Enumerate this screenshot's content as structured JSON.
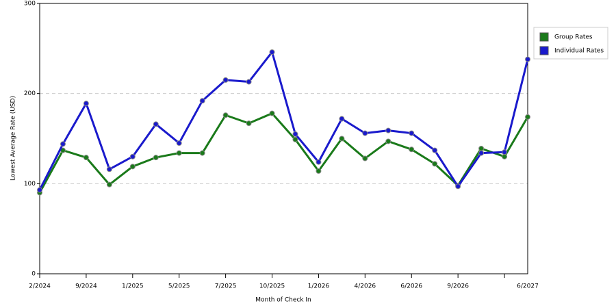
{
  "chart_data": {
    "type": "line",
    "x_label": "Month of Check In",
    "y_label": "Lowest Average Rate (USD)",
    "categories": [
      "2/2024",
      null,
      "9/2024",
      null,
      "1/2025",
      null,
      "5/2025",
      null,
      "7/2025",
      null,
      "10/2025",
      null,
      "1/2026",
      null,
      "4/2026",
      null,
      "6/2026",
      null,
      "9/2026",
      null,
      null,
      "6/2027"
    ],
    "series": [
      {
        "name": "Group Rates",
        "color": "#1a7a1a",
        "values": [
          90,
          137,
          129,
          99,
          119,
          129,
          134,
          134,
          176,
          167,
          178,
          149,
          114,
          150,
          128,
          147,
          138,
          122,
          98,
          139,
          130,
          174
        ]
      },
      {
        "name": "Individual Rates",
        "color": "#1a1acc",
        "values": [
          93,
          144,
          189,
          116,
          130,
          166,
          145,
          192,
          215,
          213,
          246,
          155,
          124,
          172,
          156,
          159,
          156,
          137,
          97,
          134,
          135,
          238
        ]
      }
    ],
    "ylim": [
      0,
      300
    ],
    "yticks": [
      0,
      100,
      200,
      300
    ],
    "grid": true,
    "legend": "right"
  }
}
